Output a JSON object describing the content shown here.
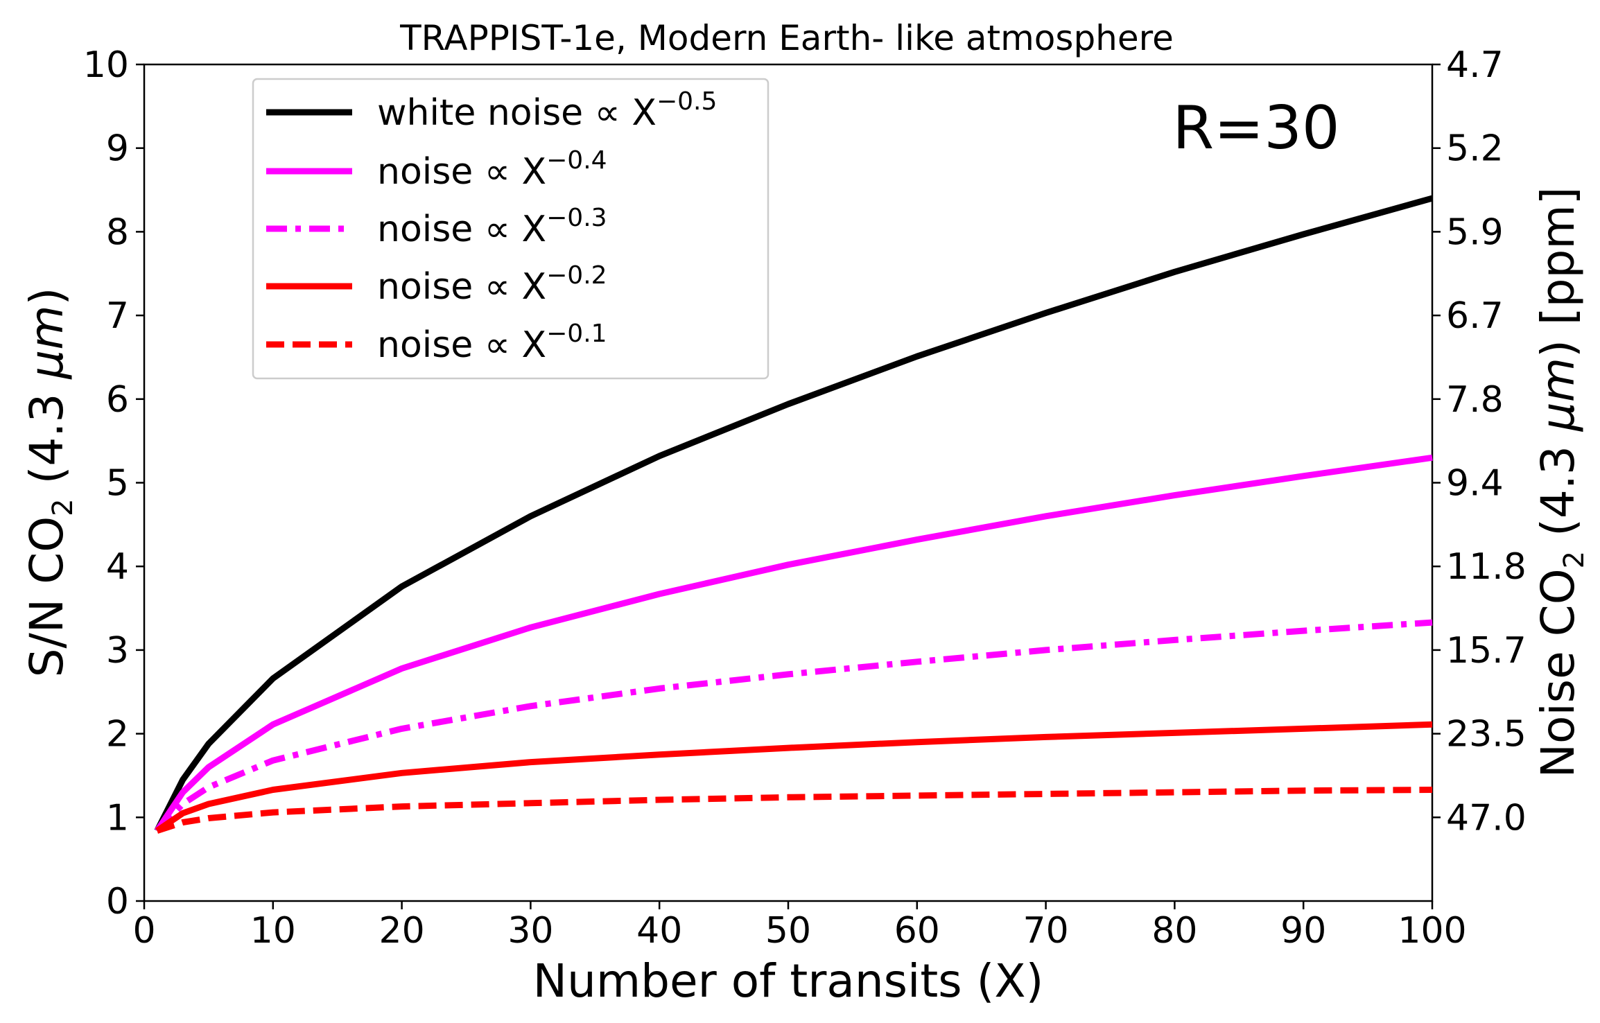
{
  "chart_data": {
    "type": "line",
    "title": "TRAPPIST-1e, Modern Earth- like atmosphere",
    "annotation": "R=30",
    "xlabel": "Number of transits (X)",
    "ylabel": {
      "prefix": "S/N CO",
      "subscript": "2",
      "suffix": " (4.3 ",
      "unit_italic": "μm",
      "close": ")"
    },
    "y2label": {
      "prefix": "Noise CO",
      "subscript": "2",
      "suffix": " (4.3 ",
      "unit_italic": "μm",
      "close": ") [ppm]"
    },
    "xlim": [
      0,
      100
    ],
    "ylim": [
      0,
      10
    ],
    "xticks": [
      0,
      10,
      20,
      30,
      40,
      50,
      60,
      70,
      80,
      90,
      100
    ],
    "yticks": [
      0,
      1,
      2,
      3,
      4,
      5,
      6,
      7,
      8,
      9,
      10
    ],
    "y2ticks": [
      {
        "at": 1,
        "label": "47.0"
      },
      {
        "at": 2,
        "label": "23.5"
      },
      {
        "at": 3,
        "label": "15.7"
      },
      {
        "at": 4,
        "label": "11.8"
      },
      {
        "at": 5,
        "label": "9.4"
      },
      {
        "at": 6,
        "label": "7.8"
      },
      {
        "at": 7,
        "label": "6.7"
      },
      {
        "at": 8,
        "label": "5.9"
      },
      {
        "at": 9,
        "label": "5.2"
      },
      {
        "at": 10,
        "label": "4.7"
      }
    ],
    "x": [
      1,
      3,
      5,
      10,
      20,
      30,
      40,
      50,
      60,
      70,
      80,
      90,
      100
    ],
    "series": [
      {
        "name": "white noise ∝ X",
        "exponent": "−0.5",
        "color": "#000000",
        "style": "solid",
        "values": [
          0.84,
          1.45,
          1.88,
          2.66,
          3.76,
          4.6,
          5.32,
          5.94,
          6.51,
          7.03,
          7.52,
          7.97,
          8.4
        ]
      },
      {
        "name": "noise ∝ X",
        "exponent": "−0.4",
        "color": "#ff00ff",
        "style": "solid",
        "values": [
          0.84,
          1.3,
          1.6,
          2.11,
          2.78,
          3.27,
          3.67,
          4.02,
          4.32,
          4.6,
          4.85,
          5.08,
          5.3
        ]
      },
      {
        "name": "noise ∝ X",
        "exponent": "−0.3",
        "color": "#ff00ff",
        "style": "dashdot",
        "values": [
          0.84,
          1.16,
          1.36,
          1.68,
          2.06,
          2.33,
          2.54,
          2.71,
          2.86,
          3.0,
          3.12,
          3.23,
          3.33
        ]
      },
      {
        "name": "noise ∝ X",
        "exponent": "−0.2",
        "color": "#ff0000",
        "style": "solid",
        "values": [
          0.84,
          1.05,
          1.16,
          1.33,
          1.53,
          1.66,
          1.75,
          1.83,
          1.9,
          1.96,
          2.01,
          2.06,
          2.11
        ]
      },
      {
        "name": "noise ∝ X",
        "exponent": "−0.1",
        "color": "#ff0000",
        "style": "dashed",
        "values": [
          0.84,
          0.94,
          0.99,
          1.06,
          1.13,
          1.17,
          1.21,
          1.24,
          1.26,
          1.28,
          1.3,
          1.32,
          1.33
        ]
      }
    ]
  }
}
